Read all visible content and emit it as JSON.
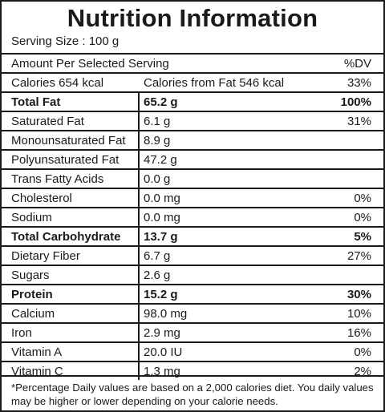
{
  "title": "Nutrition Information",
  "serving_size": "Serving Size : 100 g",
  "header": {
    "label": "Amount Per Selected Serving",
    "dv": "%DV"
  },
  "calories": {
    "label": "Calories 654 kcal",
    "from_fat": "Calories from Fat 546 kcal",
    "dv": "33%"
  },
  "nutrients": [
    {
      "name": "Total Fat",
      "amount": "65.2 g",
      "dv": "100%",
      "bold": true
    },
    {
      "name": "Saturated Fat",
      "amount": "6.1 g",
      "dv": "31%",
      "bold": false
    },
    {
      "name": "Monounsaturated Fat",
      "amount": "8.9 g",
      "dv": "",
      "bold": false
    },
    {
      "name": "Polyunsaturated Fat",
      "amount": "47.2 g",
      "dv": "",
      "bold": false
    },
    {
      "name": "Trans Fatty Acids",
      "amount": "0.0 g",
      "dv": "",
      "bold": false
    },
    {
      "name": "Cholesterol",
      "amount": "0.0 mg",
      "dv": "0%",
      "bold": false
    },
    {
      "name": "Sodium",
      "amount": "0.0 mg",
      "dv": "0%",
      "bold": false
    },
    {
      "name": "Total Carbohydrate",
      "amount": "13.7 g",
      "dv": "5%",
      "bold": true
    },
    {
      "name": "Dietary Fiber",
      "amount": "6.7 g",
      "dv": "27%",
      "bold": false
    },
    {
      "name": "Sugars",
      "amount": "2.6 g",
      "dv": "",
      "bold": false
    },
    {
      "name": "Protein",
      "amount": "15.2 g",
      "dv": "30%",
      "bold": true
    },
    {
      "name": "Calcium",
      "amount": "98.0 mg",
      "dv": "10%",
      "bold": false
    },
    {
      "name": "Iron",
      "amount": "2.9 mg",
      "dv": "16%",
      "bold": false
    },
    {
      "name": "Vitamin A",
      "amount": "20.0 IU",
      "dv": "0%",
      "bold": false
    },
    {
      "name": "Vitamin C",
      "amount": "1.3 mg",
      "dv": "2%",
      "bold": false
    }
  ],
  "footnote": "*Percentage Daily values are based on a 2,000 calories diet. You daily values may be higher or lower depending on your calorie needs."
}
